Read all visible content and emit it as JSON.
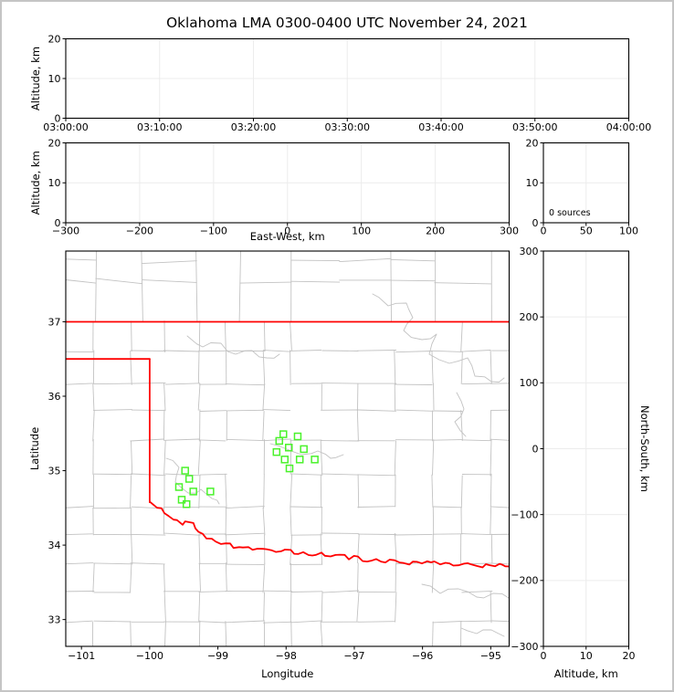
{
  "title": "Oklahoma LMA 0300-0400 UTC November 24, 2021",
  "colors": {
    "background": "#ffffff",
    "outer_border": "#c5c5c5",
    "frame": "#000000",
    "grid": "#ececec",
    "county_boundary": "#c2c2c2",
    "state_border": "#ff0000",
    "source_marker": "#4af22b",
    "text": "#000000"
  },
  "chart_data": [
    {
      "id": "time_height",
      "type": "scatter",
      "description": "altitude vs time panel (empty - no sources)",
      "xlabel": "",
      "ylabel": "Altitude, km",
      "x_tick_labels": [
        "03:00:00",
        "03:10:00",
        "03:20:00",
        "03:30:00",
        "03:40:00",
        "03:50:00",
        "04:00:00"
      ],
      "y_ticks": [
        0,
        10,
        20
      ],
      "y_tick_labels": [
        "0",
        "10",
        "20"
      ],
      "ylim": [
        0,
        20
      ],
      "grid": true,
      "points": []
    },
    {
      "id": "ew_height",
      "type": "scatter",
      "description": "altitude vs east-west panel (empty - no sources)",
      "xlabel": "East-West, km",
      "ylabel": "Altitude, km",
      "x_ticks": [
        -300,
        -200,
        -100,
        0,
        100,
        200,
        300
      ],
      "x_tick_labels": [
        "−300",
        "−200",
        "−100",
        "0",
        "100",
        "200",
        "300"
      ],
      "xlim": [
        -300,
        300
      ],
      "y_ticks": [
        0,
        10,
        20
      ],
      "y_tick_labels": [
        "0",
        "10",
        "20"
      ],
      "ylim": [
        0,
        20
      ],
      "grid": true,
      "points": []
    },
    {
      "id": "alt_histogram",
      "type": "histogram",
      "description": "source count vs altitude histogram (empty)",
      "xlabel": "",
      "ylabel": "",
      "annotation": "0 sources",
      "x_ticks": [
        0,
        50,
        100
      ],
      "x_tick_labels": [
        "0",
        "50",
        "100"
      ],
      "xlim": [
        0,
        100
      ],
      "y_ticks": [
        0,
        10,
        20
      ],
      "y_tick_labels": [
        "0",
        "10",
        "20"
      ],
      "ylim": [
        0,
        20
      ],
      "grid": true,
      "points": []
    },
    {
      "id": "plan_map",
      "type": "scatter",
      "description": "plan-view map of Oklahoma with LMA sources as open green squares",
      "xlabel": "Longitude",
      "ylabel": "Latitude",
      "x_ticks": [
        -101,
        -100,
        -99,
        -98,
        -97,
        -96,
        -95
      ],
      "x_tick_labels": [
        "−101",
        "−100",
        "−99",
        "−98",
        "−97",
        "−96",
        "−95"
      ],
      "xlim": [
        -101.23,
        -94.73
      ],
      "y_ticks": [
        33,
        34,
        35,
        36,
        37
      ],
      "y_tick_labels": [
        "33",
        "34",
        "35",
        "36",
        "37"
      ],
      "ylim": [
        32.64,
        37.95
      ],
      "grid": false,
      "marker": "open-square",
      "points": [
        {
          "lon": -99.48,
          "lat": 35.0
        },
        {
          "lon": -99.42,
          "lat": 34.89
        },
        {
          "lon": -99.57,
          "lat": 34.78
        },
        {
          "lon": -99.36,
          "lat": 34.72
        },
        {
          "lon": -99.11,
          "lat": 34.72
        },
        {
          "lon": -99.53,
          "lat": 34.61
        },
        {
          "lon": -99.46,
          "lat": 34.55
        },
        {
          "lon": -98.04,
          "lat": 35.49
        },
        {
          "lon": -97.83,
          "lat": 35.46
        },
        {
          "lon": -98.1,
          "lat": 35.4
        },
        {
          "lon": -97.96,
          "lat": 35.31
        },
        {
          "lon": -97.74,
          "lat": 35.29
        },
        {
          "lon": -98.14,
          "lat": 35.25
        },
        {
          "lon": -98.02,
          "lat": 35.15
        },
        {
          "lon": -97.8,
          "lat": 35.15
        },
        {
          "lon": -97.58,
          "lat": 35.15
        },
        {
          "lon": -97.95,
          "lat": 35.03
        }
      ]
    },
    {
      "id": "ns_height",
      "type": "scatter",
      "description": "north-south vs altitude panel (empty - no sources)",
      "xlabel": "Altitude, km",
      "ylabel": "North-South, km",
      "x_ticks": [
        0,
        10,
        20
      ],
      "x_tick_labels": [
        "0",
        "10",
        "20"
      ],
      "xlim": [
        0,
        20
      ],
      "y_ticks": [
        300,
        200,
        100,
        0,
        -100,
        -200,
        -300
      ],
      "y_tick_labels": [
        "300",
        "200",
        "100",
        "0",
        "−100",
        "−200",
        "−300"
      ],
      "ylim": [
        -300,
        300
      ],
      "grid": true,
      "points": []
    }
  ]
}
